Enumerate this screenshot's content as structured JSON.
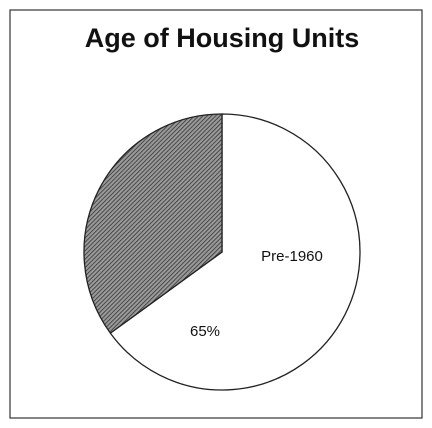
{
  "chart_data": {
    "type": "pie",
    "title": "Age of Housing Units",
    "categories": [
      "Pre-1960",
      null
    ],
    "values": [
      65,
      35
    ],
    "value_labels": [
      "65%",
      null
    ],
    "colors": [
      "#ffffff",
      "#5a5a5a"
    ]
  }
}
